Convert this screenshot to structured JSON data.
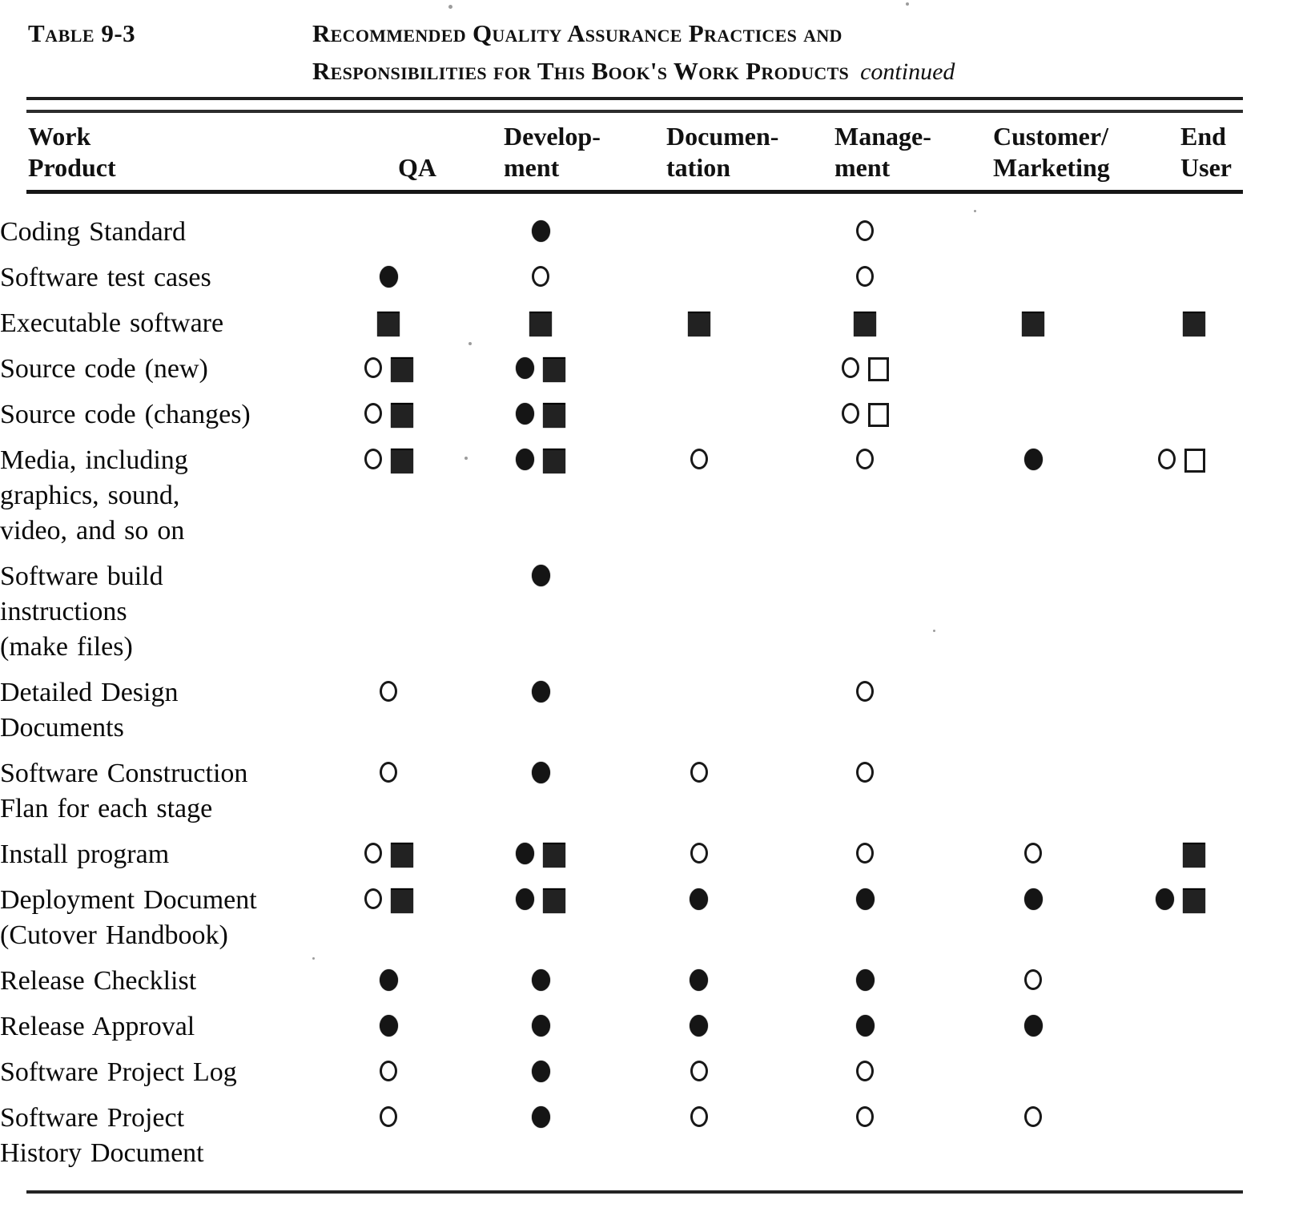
{
  "page": {
    "caption_label": "Table 9-3",
    "title_line1": "Recommended Quality Assurance Practices and",
    "title_line2": "Responsibilities for This Book's Work Products",
    "title_continued": "continued"
  },
  "table": {
    "columns": [
      {
        "id": "work_product",
        "lines": [
          "Work",
          "Product"
        ]
      },
      {
        "id": "qa",
        "lines": [
          "QA"
        ]
      },
      {
        "id": "development",
        "lines": [
          "Develop-",
          "ment"
        ]
      },
      {
        "id": "documentation",
        "lines": [
          "Documen-",
          "tation"
        ]
      },
      {
        "id": "management",
        "lines": [
          "Manage-",
          "ment"
        ]
      },
      {
        "id": "customer_marketing",
        "lines": [
          "Customer/",
          "Marketing"
        ]
      },
      {
        "id": "end_user",
        "lines": [
          "End",
          "User"
        ]
      }
    ],
    "symbol_names": {
      "filled-circle": "filled circle",
      "open-circle": "open circle",
      "filled-square": "filled square",
      "open-square": "open square"
    },
    "rows": [
      {
        "label_lines": [
          "Coding Standard"
        ],
        "cells": [
          [],
          [
            "filled-circle"
          ],
          [],
          [
            "open-circle"
          ],
          [],
          []
        ]
      },
      {
        "label_lines": [
          "Software test cases"
        ],
        "cells": [
          [
            "filled-circle"
          ],
          [
            "open-circle"
          ],
          [],
          [
            "open-circle"
          ],
          [],
          []
        ]
      },
      {
        "label_lines": [
          "Executable software"
        ],
        "cells": [
          [
            "filled-square"
          ],
          [
            "filled-square"
          ],
          [
            "filled-square"
          ],
          [
            "filled-square"
          ],
          [
            "filled-square"
          ],
          [
            "filled-square"
          ]
        ]
      },
      {
        "label_lines": [
          "Source code (new)"
        ],
        "cells": [
          [
            "open-circle",
            "filled-square"
          ],
          [
            "filled-circle",
            "filled-square"
          ],
          [],
          [
            "open-circle",
            "open-square"
          ],
          [],
          []
        ]
      },
      {
        "label_lines": [
          "Source code (changes)"
        ],
        "cells": [
          [
            "open-circle",
            "filled-square"
          ],
          [
            "filled-circle",
            "filled-square"
          ],
          [],
          [
            "open-circle",
            "open-square"
          ],
          [],
          []
        ]
      },
      {
        "label_lines": [
          "Media, including",
          "graphics, sound,",
          "video, and so on"
        ],
        "cells": [
          [
            "open-circle",
            "filled-square"
          ],
          [
            "filled-circle",
            "filled-square"
          ],
          [
            "open-circle"
          ],
          [
            "open-circle"
          ],
          [
            "filled-circle"
          ],
          [
            "open-circle",
            "open-square"
          ]
        ]
      },
      {
        "label_lines": [
          "Software build",
          "instructions",
          "(make files)"
        ],
        "cells": [
          [],
          [
            "filled-circle"
          ],
          [],
          [],
          [],
          []
        ]
      },
      {
        "label_lines": [
          "Detailed Design",
          "Documents"
        ],
        "cells": [
          [
            "open-circle"
          ],
          [
            "filled-circle"
          ],
          [],
          [
            "open-circle"
          ],
          [],
          []
        ]
      },
      {
        "label_lines": [
          "Software Construction",
          "Flan for each stage"
        ],
        "cells": [
          [
            "open-circle"
          ],
          [
            "filled-circle"
          ],
          [
            "open-circle"
          ],
          [
            "open-circle"
          ],
          [],
          []
        ]
      },
      {
        "label_lines": [
          "Install program"
        ],
        "cells": [
          [
            "open-circle",
            "filled-square"
          ],
          [
            "filled-circle",
            "filled-square"
          ],
          [
            "open-circle"
          ],
          [
            "open-circle"
          ],
          [
            "open-circle"
          ],
          [
            "filled-square"
          ]
        ]
      },
      {
        "label_lines": [
          "Deployment Document",
          "(Cutover Handbook)"
        ],
        "cells": [
          [
            "open-circle",
            "filled-square"
          ],
          [
            "filled-circle",
            "filled-square"
          ],
          [
            "filled-circle"
          ],
          [
            "filled-circle"
          ],
          [
            "filled-circle"
          ],
          [
            "filled-circle",
            "filled-square"
          ]
        ]
      },
      {
        "label_lines": [
          "Release Checklist"
        ],
        "cells": [
          [
            "filled-circle"
          ],
          [
            "filled-circle"
          ],
          [
            "filled-circle"
          ],
          [
            "filled-circle"
          ],
          [
            "open-circle"
          ],
          []
        ]
      },
      {
        "label_lines": [
          "Release Approval"
        ],
        "cells": [
          [
            "filled-circle"
          ],
          [
            "filled-circle"
          ],
          [
            "filled-circle"
          ],
          [
            "filled-circle"
          ],
          [
            "filled-circle"
          ],
          []
        ]
      },
      {
        "label_lines": [
          "Software Project Log"
        ],
        "cells": [
          [
            "open-circle"
          ],
          [
            "filled-circle"
          ],
          [
            "open-circle"
          ],
          [
            "open-circle"
          ],
          [],
          []
        ]
      },
      {
        "label_lines": [
          "Software Project",
          "History Document"
        ],
        "cells": [
          [
            "open-circle"
          ],
          [
            "filled-circle"
          ],
          [
            "open-circle"
          ],
          [
            "open-circle"
          ],
          [
            "open-circle"
          ],
          []
        ]
      }
    ]
  }
}
